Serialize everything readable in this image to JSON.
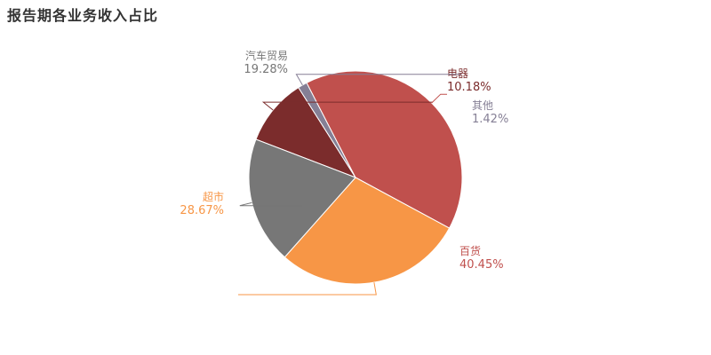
{
  "chart_data": {
    "type": "pie",
    "title": "报告期各业务收入占比",
    "slices": [
      {
        "name": "电器",
        "label": "电器",
        "value": 10.18,
        "percent_label": "10.18%",
        "color": "#7b2c2c"
      },
      {
        "name": "其他",
        "label": "其他",
        "value": 1.42,
        "percent_label": "1.42%",
        "color": "#857f95"
      },
      {
        "name": "百货",
        "label": "百货",
        "value": 40.45,
        "percent_label": "40.45%",
        "color": "#c0504d"
      },
      {
        "name": "超市",
        "label": "超市",
        "value": 28.67,
        "percent_label": "28.67%",
        "color": "#f79646"
      },
      {
        "name": "汽车贸易",
        "label": "汽车贸易",
        "value": 19.28,
        "percent_label": "19.28%",
        "color": "#777777"
      }
    ],
    "legend": "none"
  }
}
